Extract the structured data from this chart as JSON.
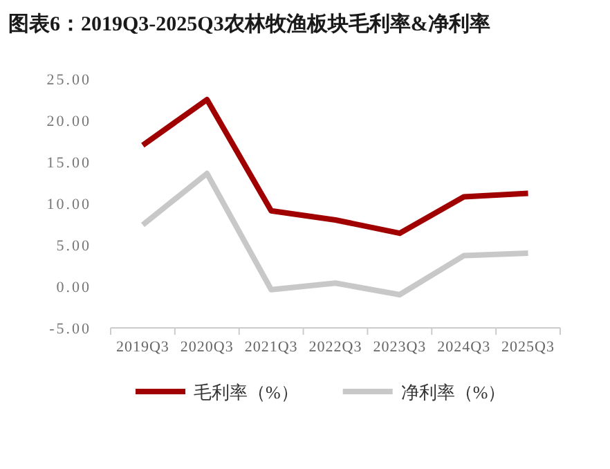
{
  "chart_data": {
    "type": "line",
    "title": "图表6：2019Q3-2025Q3农林牧渔板块毛利率&净利率",
    "categories": [
      "2019Q3",
      "2020Q3",
      "2021Q3",
      "2022Q3",
      "2023Q3",
      "2024Q3",
      "2025Q3"
    ],
    "series": [
      {
        "name": "毛利率（%）",
        "color": "#a00000",
        "values": [
          17.0,
          22.5,
          9.1,
          8.0,
          6.4,
          10.8,
          11.2
        ]
      },
      {
        "name": "净利率（%）",
        "color": "#c8c8c8",
        "values": [
          7.4,
          13.6,
          -0.4,
          0.4,
          -1.0,
          3.7,
          4.0
        ]
      }
    ],
    "ylim": [
      -5,
      25
    ],
    "yticks": [
      {
        "value": -5,
        "label": "-5.00"
      },
      {
        "value": 0,
        "label": "0.00"
      },
      {
        "value": 5,
        "label": "5.00"
      },
      {
        "value": 10,
        "label": "10.00"
      },
      {
        "value": 15,
        "label": "15.00"
      },
      {
        "value": 20,
        "label": "20.00"
      },
      {
        "value": 25,
        "label": "25.00"
      }
    ],
    "grid": false,
    "legend": "bottom",
    "marker": "none",
    "line_style": "solid"
  }
}
